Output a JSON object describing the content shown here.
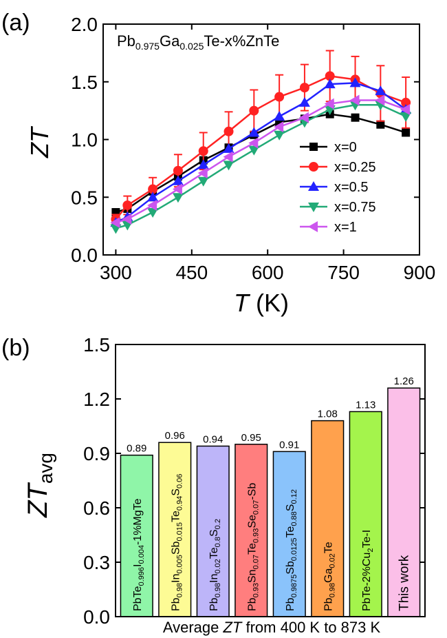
{
  "chart_data": [
    {
      "panel_label": "(a)",
      "type": "line",
      "title": {
        "base": [
          "Pb",
          "Ga",
          "Te-x%ZnTe"
        ],
        "subs": [
          "0.975",
          "0.025"
        ]
      },
      "xlabel": {
        "italic": "T",
        "rest": " (K)"
      },
      "ylabel": "ZT",
      "xlim": [
        275,
        900
      ],
      "ylim": [
        0.0,
        2.0
      ],
      "xticks": [
        "300",
        "450",
        "600",
        "750",
        "900"
      ],
      "xtick_values": [
        300,
        450,
        600,
        750,
        900
      ],
      "yticks": [
        "0.0",
        "0.5",
        "1.0",
        "1.5",
        "2.0"
      ],
      "ytick_values": [
        0.0,
        0.5,
        1.0,
        1.5,
        2.0
      ],
      "grid": false,
      "legend": "right",
      "series": [
        {
          "name": "x=0",
          "color": "#000000",
          "marker": "square",
          "x": [
            300,
            323,
            373,
            423,
            473,
            523,
            573,
            623,
            673,
            723,
            773,
            823,
            873
          ],
          "y": [
            0.37,
            0.4,
            0.55,
            0.68,
            0.82,
            0.93,
            1.04,
            1.15,
            1.18,
            1.22,
            1.19,
            1.13,
            1.06
          ],
          "err": [
            0,
            0,
            0,
            0,
            0,
            0,
            0,
            0,
            0,
            0,
            0,
            0,
            0
          ]
        },
        {
          "name": "x=0.25",
          "color": "#ff2222",
          "marker": "circle",
          "x": [
            300,
            323,
            373,
            423,
            473,
            523,
            573,
            623,
            673,
            723,
            773,
            823,
            873
          ],
          "y": [
            0.31,
            0.43,
            0.57,
            0.73,
            0.9,
            1.07,
            1.25,
            1.37,
            1.45,
            1.55,
            1.52,
            1.4,
            1.32
          ],
          "err": [
            0.04,
            0.08,
            0.1,
            0.14,
            0.16,
            0.17,
            0.18,
            0.19,
            0.2,
            0.22,
            0.2,
            0.24,
            0.22
          ]
        },
        {
          "name": "x=0.5",
          "color": "#2222ff",
          "marker": "triangle-up",
          "x": [
            300,
            323,
            373,
            423,
            473,
            523,
            573,
            623,
            673,
            723,
            773,
            823,
            873
          ],
          "y": [
            0.28,
            0.33,
            0.5,
            0.64,
            0.78,
            0.92,
            1.06,
            1.2,
            1.32,
            1.48,
            1.49,
            1.42,
            1.26
          ],
          "err": [
            0,
            0,
            0,
            0,
            0,
            0,
            0,
            0,
            0,
            0,
            0,
            0,
            0
          ]
        },
        {
          "name": "x=0.75",
          "color": "#22aa77",
          "marker": "triangle-down",
          "x": [
            300,
            323,
            373,
            423,
            473,
            523,
            573,
            623,
            673,
            723,
            773,
            823,
            873
          ],
          "y": [
            0.23,
            0.26,
            0.37,
            0.5,
            0.64,
            0.78,
            0.91,
            1.04,
            1.15,
            1.26,
            1.3,
            1.3,
            1.2
          ],
          "err": [
            0,
            0,
            0,
            0,
            0,
            0,
            0,
            0,
            0,
            0,
            0,
            0,
            0
          ]
        },
        {
          "name": "x=1",
          "color": "#cc55ee",
          "marker": "triangle-left",
          "x": [
            300,
            323,
            373,
            423,
            473,
            523,
            573,
            623,
            673,
            723,
            773,
            823,
            873
          ],
          "y": [
            0.28,
            0.31,
            0.43,
            0.57,
            0.71,
            0.85,
            0.97,
            1.11,
            1.19,
            1.31,
            1.34,
            1.34,
            1.26
          ],
          "err": [
            0,
            0,
            0,
            0,
            0,
            0,
            0,
            0,
            0,
            0,
            0,
            0,
            0
          ]
        }
      ]
    },
    {
      "panel_label": "(b)",
      "type": "bar",
      "ylabel": {
        "base": "ZT",
        "sub": "avg"
      },
      "xlabel": {
        "pre": "Average ",
        "italic": "ZT",
        "post": "  from 400 K to 873 K"
      },
      "ylim": [
        0.0,
        1.5
      ],
      "yticks": [
        "0.0",
        "0.3",
        "0.6",
        "0.9",
        "1.2",
        "1.5"
      ],
      "ytick_values": [
        0.0,
        0.3,
        0.6,
        0.9,
        1.2,
        1.5
      ],
      "grid": false,
      "values": [
        0.89,
        0.96,
        0.94,
        0.95,
        0.91,
        1.08,
        1.13,
        1.26
      ],
      "value_labels": [
        "0.89",
        "0.96",
        "0.94",
        "0.95",
        "0.91",
        "1.08",
        "1.13",
        "1.26"
      ],
      "colors": [
        "#8ff5a8",
        "#fdfb95",
        "#bdb5f9",
        "#ff7e7e",
        "#8ac3fb",
        "#ffa14d",
        "#a4f44c",
        "#fbbfe8"
      ],
      "categories": [
        [
          [
            "PbTe",
            "n"
          ],
          [
            "0.996",
            "s"
          ],
          [
            "I",
            "n"
          ],
          [
            "0.004",
            "s"
          ],
          [
            "-1%MgTe",
            "n"
          ]
        ],
        [
          [
            "Pb",
            "n"
          ],
          [
            "0.98",
            "s"
          ],
          [
            "In",
            "n"
          ],
          [
            "0.005",
            "s"
          ],
          [
            "Sb",
            "n"
          ],
          [
            "0.015",
            "s"
          ],
          [
            "Te",
            "n"
          ],
          [
            "0.94",
            "s"
          ],
          [
            "S",
            "n"
          ],
          [
            "0.06",
            "s"
          ]
        ],
        [
          [
            "Pb",
            "n"
          ],
          [
            "0.98",
            "s"
          ],
          [
            "In",
            "n"
          ],
          [
            "0.02",
            "s"
          ],
          [
            "Te",
            "n"
          ],
          [
            "0.8",
            "s"
          ],
          [
            "S",
            "n"
          ],
          [
            "0.2",
            "s"
          ]
        ],
        [
          [
            "Pb",
            "n"
          ],
          [
            "0.93",
            "s"
          ],
          [
            "Sn",
            "n"
          ],
          [
            "0.07",
            "s"
          ],
          [
            "Te",
            "n"
          ],
          [
            "0.93",
            "s"
          ],
          [
            "Se",
            "n"
          ],
          [
            "0.07",
            "s"
          ],
          [
            "-Sb",
            "n"
          ]
        ],
        [
          [
            "Pb",
            "n"
          ],
          [
            "0.9875",
            "s"
          ],
          [
            "Sb",
            "n"
          ],
          [
            "0.0125",
            "s"
          ],
          [
            "Te",
            "n"
          ],
          [
            "0.88",
            "s"
          ],
          [
            "S",
            "n"
          ],
          [
            "0.12",
            "s"
          ]
        ],
        [
          [
            "Pb",
            "n"
          ],
          [
            "0.98",
            "s"
          ],
          [
            "Ga",
            "n"
          ],
          [
            "0.02",
            "s"
          ],
          [
            "Te",
            "n"
          ]
        ],
        [
          [
            "PbTe-2%Cu",
            "n"
          ],
          [
            "2",
            "s"
          ],
          [
            "Te-I",
            "n"
          ]
        ],
        [
          [
            "This work",
            "n"
          ]
        ]
      ]
    }
  ]
}
